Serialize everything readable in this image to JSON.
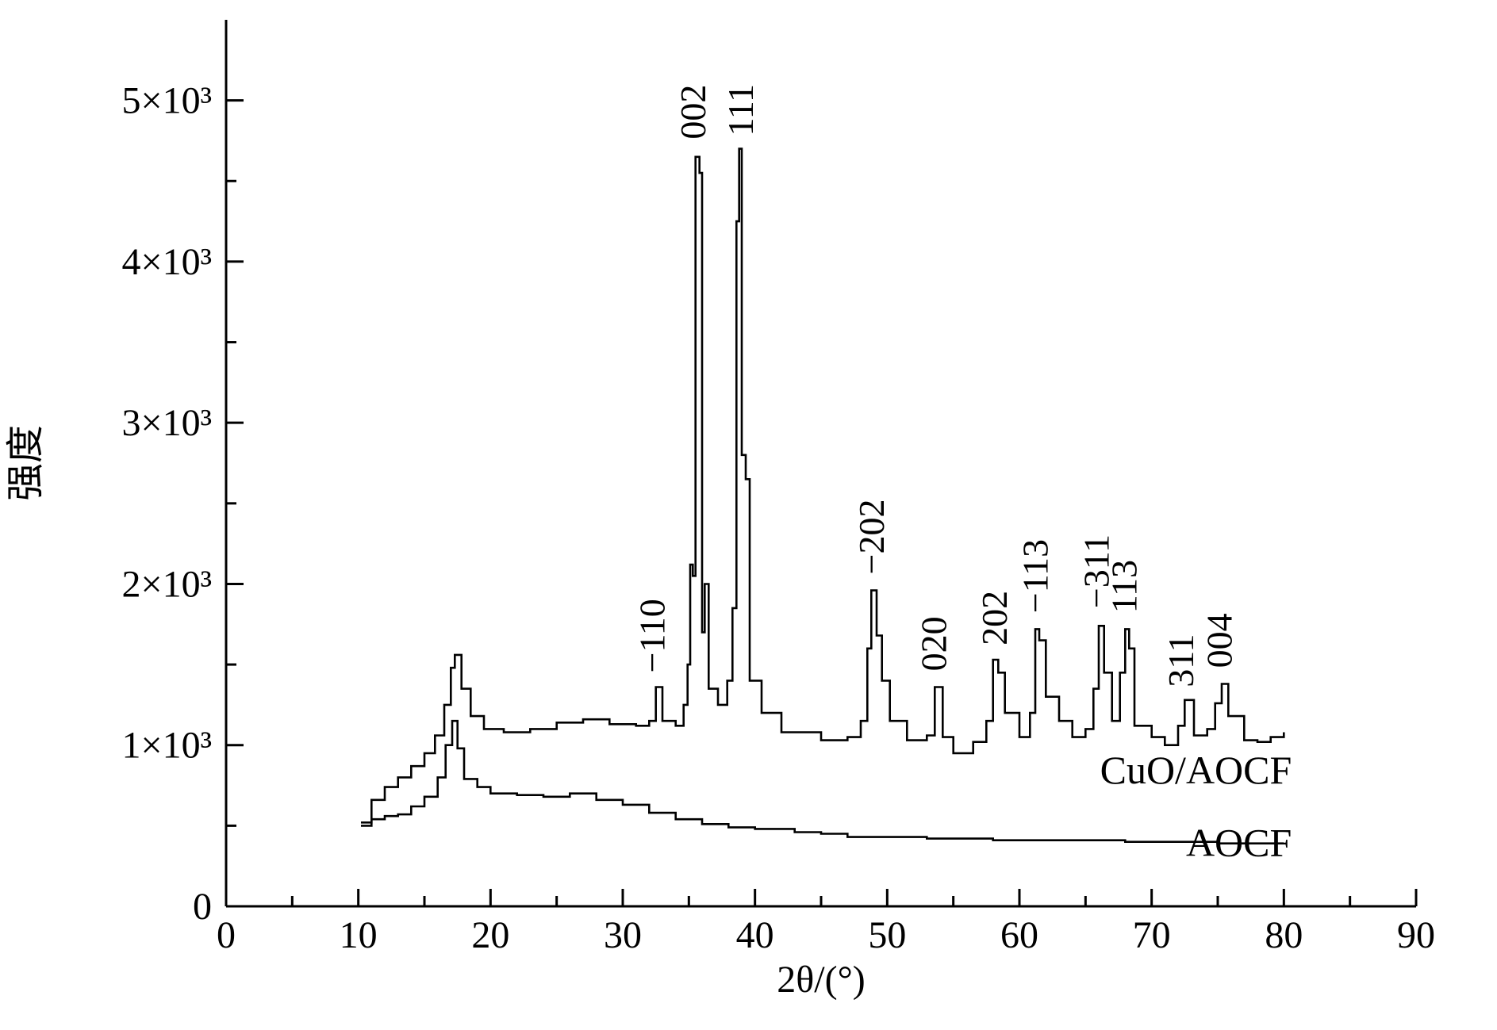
{
  "chart_data": {
    "type": "line",
    "xlabel": "2θ/(°)",
    "ylabel": "强度",
    "xlim": [
      0,
      90
    ],
    "ylim": [
      0,
      5500
    ],
    "x_major_ticks": [
      0,
      10,
      20,
      30,
      40,
      50,
      60,
      70,
      80,
      90
    ],
    "x_minor_ticks": [
      5,
      15,
      25,
      35,
      45,
      55,
      65,
      75,
      85
    ],
    "y_ticks": [
      {
        "value": 0,
        "label": "0"
      },
      {
        "value": 1000,
        "label": "1×10³"
      },
      {
        "value": 2000,
        "label": "2×10³"
      },
      {
        "value": 3000,
        "label": "3×10³"
      },
      {
        "value": 4000,
        "label": "4×10³"
      },
      {
        "value": 5000,
        "label": "5×10³"
      }
    ],
    "y_minor_ticks": [
      500,
      1500,
      2500,
      3500,
      4500
    ],
    "series": [
      {
        "name": "CuO/AOCF",
        "label_anchor": [
          80,
          850
        ],
        "points": [
          [
            10.2,
            520
          ],
          [
            11,
            660
          ],
          [
            12,
            740
          ],
          [
            13,
            800
          ],
          [
            14,
            870
          ],
          [
            15,
            950
          ],
          [
            15.8,
            1060
          ],
          [
            16.5,
            1250
          ],
          [
            17,
            1480
          ],
          [
            17.3,
            1560
          ],
          [
            17.8,
            1350
          ],
          [
            18.5,
            1180
          ],
          [
            19.5,
            1100
          ],
          [
            21,
            1080
          ],
          [
            23,
            1100
          ],
          [
            25,
            1140
          ],
          [
            27,
            1160
          ],
          [
            29,
            1130
          ],
          [
            31,
            1120
          ],
          [
            32,
            1150
          ],
          [
            32.5,
            1360
          ],
          [
            33,
            1150
          ],
          [
            34,
            1120
          ],
          [
            34.6,
            1250
          ],
          [
            34.9,
            1500
          ],
          [
            35.1,
            2120
          ],
          [
            35.3,
            2050
          ],
          [
            35.5,
            4650
          ],
          [
            35.8,
            4550
          ],
          [
            36.0,
            1700
          ],
          [
            36.2,
            2000
          ],
          [
            36.5,
            1350
          ],
          [
            37.2,
            1250
          ],
          [
            37.9,
            1400
          ],
          [
            38.3,
            1850
          ],
          [
            38.6,
            4250
          ],
          [
            38.8,
            4700
          ],
          [
            39.0,
            2800
          ],
          [
            39.3,
            2650
          ],
          [
            39.6,
            1400
          ],
          [
            40.5,
            1200
          ],
          [
            42,
            1080
          ],
          [
            45,
            1030
          ],
          [
            47,
            1050
          ],
          [
            48.0,
            1150
          ],
          [
            48.5,
            1600
          ],
          [
            48.8,
            1960
          ],
          [
            49.2,
            1680
          ],
          [
            49.6,
            1400
          ],
          [
            50.2,
            1150
          ],
          [
            51.5,
            1030
          ],
          [
            53,
            1060
          ],
          [
            53.6,
            1360
          ],
          [
            54.2,
            1050
          ],
          [
            55,
            950
          ],
          [
            56.5,
            1020
          ],
          [
            57.5,
            1150
          ],
          [
            58.0,
            1530
          ],
          [
            58.4,
            1450
          ],
          [
            58.9,
            1200
          ],
          [
            60,
            1050
          ],
          [
            60.8,
            1200
          ],
          [
            61.2,
            1720
          ],
          [
            61.5,
            1650
          ],
          [
            62,
            1300
          ],
          [
            63,
            1150
          ],
          [
            64,
            1050
          ],
          [
            65,
            1100
          ],
          [
            65.6,
            1350
          ],
          [
            66.0,
            1740
          ],
          [
            66.4,
            1450
          ],
          [
            67,
            1150
          ],
          [
            67.6,
            1450
          ],
          [
            68.0,
            1720
          ],
          [
            68.3,
            1600
          ],
          [
            68.7,
            1120
          ],
          [
            70,
            1050
          ],
          [
            71,
            1000
          ],
          [
            72,
            1120
          ],
          [
            72.5,
            1280
          ],
          [
            73.2,
            1060
          ],
          [
            74.2,
            1100
          ],
          [
            74.8,
            1260
          ],
          [
            75.3,
            1380
          ],
          [
            75.8,
            1180
          ],
          [
            77,
            1030
          ],
          [
            78,
            1020
          ],
          [
            79,
            1050
          ],
          [
            80,
            1080
          ]
        ]
      },
      {
        "name": "AOCF",
        "label_anchor": [
          80,
          400
        ],
        "points": [
          [
            10.2,
            500
          ],
          [
            11,
            540
          ],
          [
            12,
            560
          ],
          [
            13,
            570
          ],
          [
            14,
            620
          ],
          [
            15,
            680
          ],
          [
            16,
            800
          ],
          [
            16.6,
            1000
          ],
          [
            17.1,
            1150
          ],
          [
            17.5,
            980
          ],
          [
            18,
            790
          ],
          [
            19,
            740
          ],
          [
            20,
            700
          ],
          [
            22,
            690
          ],
          [
            24,
            680
          ],
          [
            26,
            700
          ],
          [
            28,
            660
          ],
          [
            30,
            630
          ],
          [
            32,
            580
          ],
          [
            34,
            540
          ],
          [
            36,
            510
          ],
          [
            38,
            490
          ],
          [
            40,
            480
          ],
          [
            43,
            460
          ],
          [
            45,
            450
          ],
          [
            47,
            430
          ],
          [
            50,
            430
          ],
          [
            53,
            420
          ],
          [
            55,
            420
          ],
          [
            58,
            410
          ],
          [
            60,
            410
          ],
          [
            63,
            410
          ],
          [
            65,
            410
          ],
          [
            68,
            400
          ],
          [
            70,
            400
          ],
          [
            73,
            400
          ],
          [
            75,
            390
          ],
          [
            78,
            390
          ],
          [
            80,
            390
          ]
        ]
      }
    ],
    "annotations": [
      {
        "text": "−110",
        "x": 32.3,
        "y": 1390
      },
      {
        "text": "002",
        "x": 35.4,
        "y": 4700
      },
      {
        "text": "111",
        "x": 39.0,
        "y": 4720
      },
      {
        "text": "−202",
        "x": 48.9,
        "y": 2000
      },
      {
        "text": "020",
        "x": 53.6,
        "y": 1400
      },
      {
        "text": "202",
        "x": 58.2,
        "y": 1560
      },
      {
        "text": "−113",
        "x": 61.3,
        "y": 1760
      },
      {
        "text": "−311",
        "x": 65.9,
        "y": 1790
      },
      {
        "text": "113",
        "x": 68.0,
        "y": 1760
      },
      {
        "text": "311",
        "x": 72.3,
        "y": 1300
      },
      {
        "text": "004",
        "x": 75.2,
        "y": 1420
      }
    ]
  }
}
